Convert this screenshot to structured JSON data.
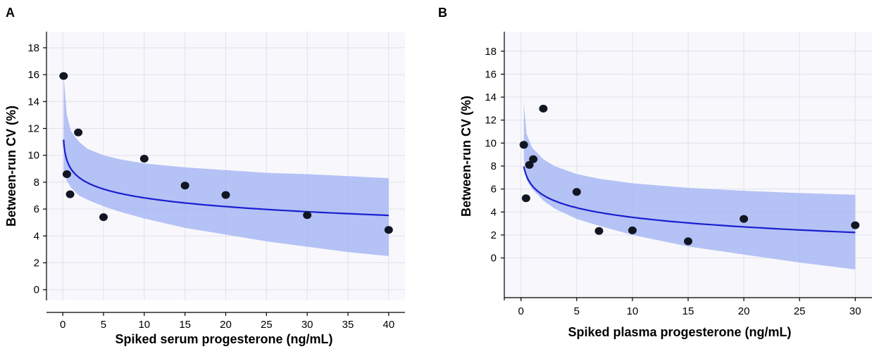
{
  "chart_data": [
    {
      "panel": "A",
      "type": "scatter",
      "xlabel": "Spiked serum progesterone (ng/mL)",
      "ylabel": "Between-run CV (%)",
      "xlim": [
        -2,
        42
      ],
      "ylim": [
        -0.8,
        19.2
      ],
      "xticks": [
        0,
        5,
        10,
        15,
        20,
        25,
        30,
        35,
        40
      ],
      "yticks": [
        0,
        2,
        4,
        6,
        8,
        10,
        12,
        14,
        16,
        18
      ],
      "grid": true,
      "points": [
        {
          "x": 0.1,
          "y": 15.9
        },
        {
          "x": 0.5,
          "y": 8.6
        },
        {
          "x": 0.9,
          "y": 7.1
        },
        {
          "x": 1.9,
          "y": 11.7
        },
        {
          "x": 5.0,
          "y": 5.4
        },
        {
          "x": 10.0,
          "y": 9.75
        },
        {
          "x": 15.0,
          "y": 7.75
        },
        {
          "x": 20.0,
          "y": 7.05
        },
        {
          "x": 30.0,
          "y": 5.55
        },
        {
          "x": 40.0,
          "y": 4.45
        }
      ],
      "fit": {
        "a": 9.0,
        "b": -0.94,
        "x_start": 0.1,
        "x_end": 40
      },
      "band": {
        "x": [
          0.1,
          0.5,
          1,
          2,
          3,
          5,
          7,
          10,
          15,
          20,
          25,
          30,
          35,
          40
        ],
        "upper": [
          16.0,
          13.0,
          11.8,
          11.0,
          10.5,
          10.0,
          9.7,
          9.4,
          9.1,
          8.9,
          8.7,
          8.6,
          8.45,
          8.3
        ],
        "lower": [
          8.8,
          8.1,
          7.6,
          7.0,
          6.7,
          6.2,
          5.8,
          5.3,
          4.6,
          4.1,
          3.6,
          3.2,
          2.8,
          2.5
        ]
      }
    },
    {
      "panel": "B",
      "type": "scatter",
      "xlabel": "Spiked plasma progesterone (ng/mL)",
      "ylabel": "Between-run CV (%)",
      "xlim": [
        -1.5,
        31.5
      ],
      "ylim": [
        -3.7,
        19.7
      ],
      "xticks": [
        0,
        5,
        10,
        15,
        20,
        25,
        30
      ],
      "yticks": [
        0,
        2,
        4,
        6,
        8,
        10,
        12,
        14,
        16,
        18
      ],
      "grid": true,
      "points": [
        {
          "x": 0.25,
          "y": 9.85
        },
        {
          "x": 0.45,
          "y": 5.2
        },
        {
          "x": 0.75,
          "y": 8.1
        },
        {
          "x": 1.1,
          "y": 8.6
        },
        {
          "x": 2.0,
          "y": 13.0
        },
        {
          "x": 5.0,
          "y": 5.75
        },
        {
          "x": 7.0,
          "y": 2.35
        },
        {
          "x": 10.0,
          "y": 2.4
        },
        {
          "x": 15.0,
          "y": 1.45
        },
        {
          "x": 20.0,
          "y": 3.4
        },
        {
          "x": 30.0,
          "y": 2.85
        }
      ],
      "fit": {
        "a": 6.3,
        "b": -1.2,
        "x_start": 0.25,
        "x_end": 30
      },
      "band": {
        "x": [
          0.25,
          0.5,
          1,
          2,
          3,
          5,
          7,
          10,
          15,
          20,
          25,
          30
        ],
        "upper": [
          13.5,
          10.8,
          9.6,
          8.6,
          8.0,
          7.3,
          6.9,
          6.5,
          6.1,
          5.85,
          5.65,
          5.5
        ],
        "lower": [
          8.7,
          6.8,
          6.0,
          5.0,
          4.3,
          3.4,
          2.8,
          2.0,
          1.0,
          0.3,
          -0.4,
          -1.0
        ]
      }
    }
  ]
}
